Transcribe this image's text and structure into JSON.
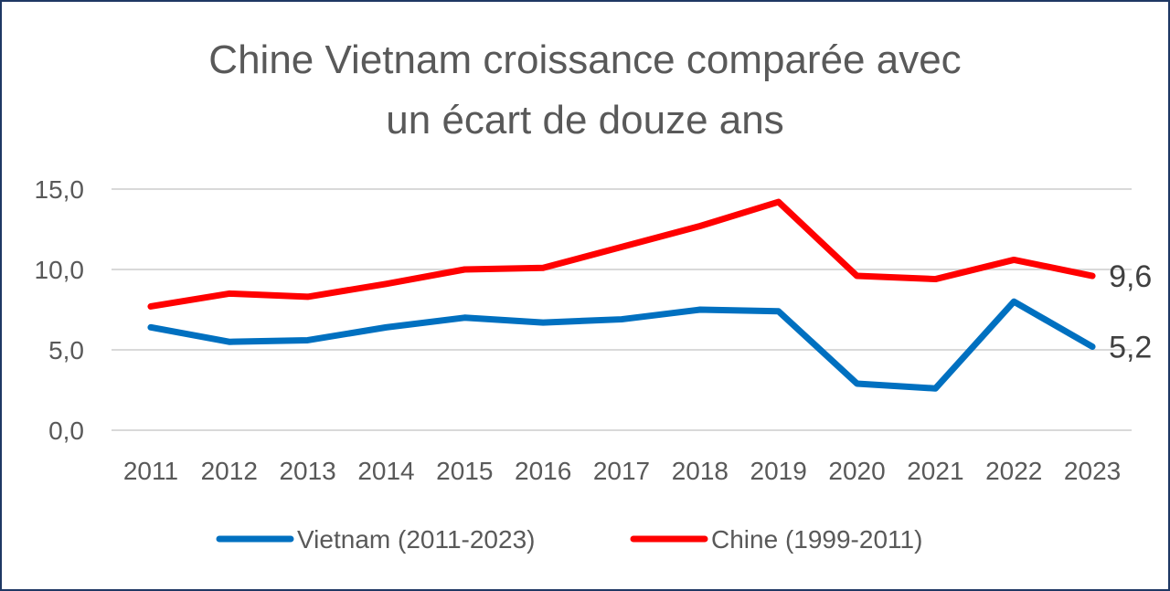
{
  "chart_data": {
    "type": "line",
    "title_lines": [
      "Chine Vietnam croissance comparée avec",
      "un écart de douze ans"
    ],
    "xlabel": "",
    "ylabel": "",
    "x": [
      "2011",
      "2012",
      "2013",
      "2014",
      "2015",
      "2016",
      "2017",
      "2018",
      "2019",
      "2020",
      "2021",
      "2022",
      "2023"
    ],
    "ylim": [
      0,
      15
    ],
    "yticks": [
      0,
      5,
      10,
      15
    ],
    "ytick_labels": [
      "0,0",
      "5,0",
      "10,0",
      "15,0"
    ],
    "grid": true,
    "legend_position": "bottom",
    "series": [
      {
        "name": "Vietnam (2011-2023)",
        "color": "#0070c0",
        "values": [
          6.4,
          5.5,
          5.6,
          6.4,
          7.0,
          6.7,
          6.9,
          7.5,
          7.4,
          2.9,
          2.6,
          8.0,
          5.2
        ],
        "end_label": "5,2"
      },
      {
        "name": "Chine (1999-2011)",
        "color": "#ff0000",
        "values": [
          7.7,
          8.5,
          8.3,
          9.1,
          10.0,
          10.1,
          11.4,
          12.7,
          14.2,
          9.6,
          9.4,
          10.6,
          9.6
        ],
        "end_label": "9,6"
      }
    ]
  }
}
